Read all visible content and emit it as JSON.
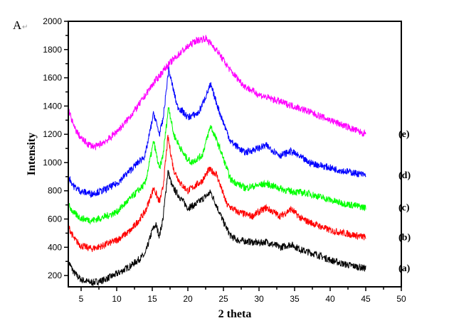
{
  "chart_data": {
    "type": "line",
    "panel_label": "A",
    "xlabel": "2 theta",
    "ylabel": "Intensity",
    "xlim": [
      3.2,
      50
    ],
    "ylim": [
      120,
      2000
    ],
    "xticks": [
      5,
      10,
      15,
      20,
      25,
      30,
      35,
      40,
      45,
      50
    ],
    "yticks": [
      200,
      400,
      600,
      800,
      1000,
      1200,
      1400,
      1600,
      1800,
      2000
    ],
    "grid": false,
    "series": [
      {
        "name": "(a)",
        "color": "#000000",
        "points": [
          [
            3.2,
            300
          ],
          [
            4,
            220
          ],
          [
            5,
            170
          ],
          [
            6.5,
            150
          ],
          [
            8,
            165
          ],
          [
            10,
            210
          ],
          [
            12,
            270
          ],
          [
            14,
            350
          ],
          [
            15,
            520
          ],
          [
            15.5,
            560
          ],
          [
            16,
            480
          ],
          [
            16.5,
            600
          ],
          [
            17.2,
            940
          ],
          [
            17.8,
            830
          ],
          [
            18.5,
            780
          ],
          [
            20,
            680
          ],
          [
            21,
            700
          ],
          [
            22.5,
            760
          ],
          [
            23.2,
            790
          ],
          [
            24,
            700
          ],
          [
            25,
            580
          ],
          [
            26,
            480
          ],
          [
            27,
            450
          ],
          [
            30,
            430
          ],
          [
            31,
            440
          ],
          [
            33,
            400
          ],
          [
            34.5,
            420
          ],
          [
            36,
            380
          ],
          [
            38,
            350
          ],
          [
            40,
            310
          ],
          [
            42,
            280
          ],
          [
            45,
            250
          ]
        ]
      },
      {
        "name": "(b)",
        "color": "#ff0000",
        "points": [
          [
            3.2,
            550
          ],
          [
            4,
            460
          ],
          [
            5,
            410
          ],
          [
            6.5,
            390
          ],
          [
            8,
            410
          ],
          [
            10,
            450
          ],
          [
            12,
            520
          ],
          [
            14,
            650
          ],
          [
            15.2,
            820
          ],
          [
            16,
            720
          ],
          [
            16.5,
            820
          ],
          [
            17.2,
            1180
          ],
          [
            18,
            950
          ],
          [
            19,
            850
          ],
          [
            20,
            800
          ],
          [
            22,
            870
          ],
          [
            23,
            950
          ],
          [
            24,
            920
          ],
          [
            25.5,
            700
          ],
          [
            27,
            650
          ],
          [
            29,
            620
          ],
          [
            31,
            680
          ],
          [
            33,
            620
          ],
          [
            34.5,
            670
          ],
          [
            36,
            600
          ],
          [
            40,
            520
          ],
          [
            45,
            470
          ]
        ]
      },
      {
        "name": "(c)",
        "color": "#00ff00",
        "points": [
          [
            3.2,
            700
          ],
          [
            4,
            640
          ],
          [
            5,
            605
          ],
          [
            6.5,
            590
          ],
          [
            8,
            610
          ],
          [
            10,
            650
          ],
          [
            12,
            750
          ],
          [
            14,
            850
          ],
          [
            15.2,
            1150
          ],
          [
            16,
            950
          ],
          [
            16.5,
            1050
          ],
          [
            17.3,
            1400
          ],
          [
            18,
            1200
          ],
          [
            19.5,
            1050
          ],
          [
            20.5,
            1000
          ],
          [
            22,
            1050
          ],
          [
            23.2,
            1260
          ],
          [
            24.5,
            1100
          ],
          [
            26,
            880
          ],
          [
            28,
            820
          ],
          [
            31,
            850
          ],
          [
            34,
            800
          ],
          [
            37,
            780
          ],
          [
            41,
            720
          ],
          [
            45,
            680
          ]
        ]
      },
      {
        "name": "(d)",
        "color": "#0000ff",
        "points": [
          [
            3.2,
            900
          ],
          [
            4,
            830
          ],
          [
            5,
            795
          ],
          [
            6.5,
            780
          ],
          [
            8,
            800
          ],
          [
            10,
            850
          ],
          [
            12,
            950
          ],
          [
            14,
            1050
          ],
          [
            15.2,
            1350
          ],
          [
            16,
            1200
          ],
          [
            16.5,
            1300
          ],
          [
            17.3,
            1660
          ],
          [
            18.5,
            1400
          ],
          [
            20,
            1320
          ],
          [
            21.5,
            1350
          ],
          [
            23.2,
            1550
          ],
          [
            24.5,
            1350
          ],
          [
            26,
            1150
          ],
          [
            28,
            1070
          ],
          [
            31,
            1120
          ],
          [
            33,
            1050
          ],
          [
            34.5,
            1080
          ],
          [
            37,
            1000
          ],
          [
            41,
            950
          ],
          [
            45,
            910
          ]
        ]
      },
      {
        "name": "(e)",
        "color": "#ff00ff",
        "points": [
          [
            3.2,
            1380
          ],
          [
            4,
            1250
          ],
          [
            5,
            1170
          ],
          [
            6,
            1130
          ],
          [
            7,
            1110
          ],
          [
            9,
            1170
          ],
          [
            11,
            1270
          ],
          [
            13,
            1400
          ],
          [
            15,
            1550
          ],
          [
            17,
            1680
          ],
          [
            19,
            1780
          ],
          [
            21,
            1860
          ],
          [
            22.5,
            1880
          ],
          [
            24,
            1800
          ],
          [
            26,
            1650
          ],
          [
            28,
            1540
          ],
          [
            30,
            1480
          ],
          [
            33,
            1430
          ],
          [
            36,
            1380
          ],
          [
            40,
            1300
          ],
          [
            43,
            1240
          ],
          [
            45,
            1200
          ]
        ]
      }
    ]
  }
}
